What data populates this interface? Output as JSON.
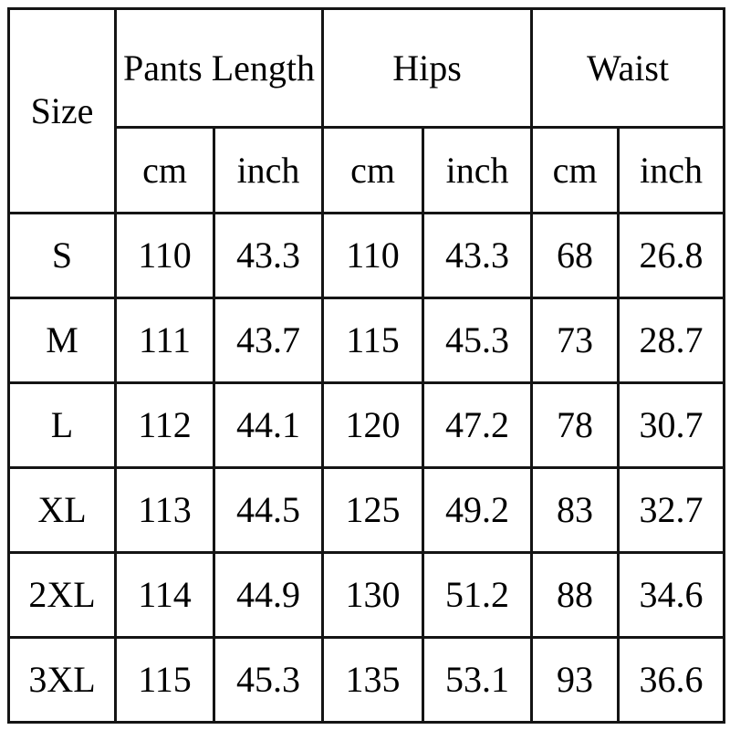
{
  "table": {
    "size_header": "Size",
    "groups": [
      {
        "label": "Pants Length"
      },
      {
        "label": "Hips"
      },
      {
        "label": "Waist"
      }
    ],
    "units": [
      "cm",
      "inch",
      "cm",
      "inch",
      "cm",
      "inch"
    ],
    "rows": [
      {
        "size": "S",
        "values": [
          "110",
          "43.3",
          "110",
          "43.3",
          "68",
          "26.8"
        ]
      },
      {
        "size": "M",
        "values": [
          "111",
          "43.7",
          "115",
          "45.3",
          "73",
          "28.7"
        ]
      },
      {
        "size": "L",
        "values": [
          "112",
          "44.1",
          "120",
          "47.2",
          "78",
          "30.7"
        ]
      },
      {
        "size": "XL",
        "values": [
          "113",
          "44.5",
          "125",
          "49.2",
          "83",
          "32.7"
        ]
      },
      {
        "size": "2XL",
        "values": [
          "114",
          "44.9",
          "130",
          "51.2",
          "88",
          "34.6"
        ]
      },
      {
        "size": "3XL",
        "values": [
          "115",
          "45.3",
          "135",
          "53.1",
          "93",
          "36.6"
        ]
      }
    ]
  },
  "colors": {
    "border": "#141414",
    "text": "#000000",
    "background": "#ffffff"
  }
}
